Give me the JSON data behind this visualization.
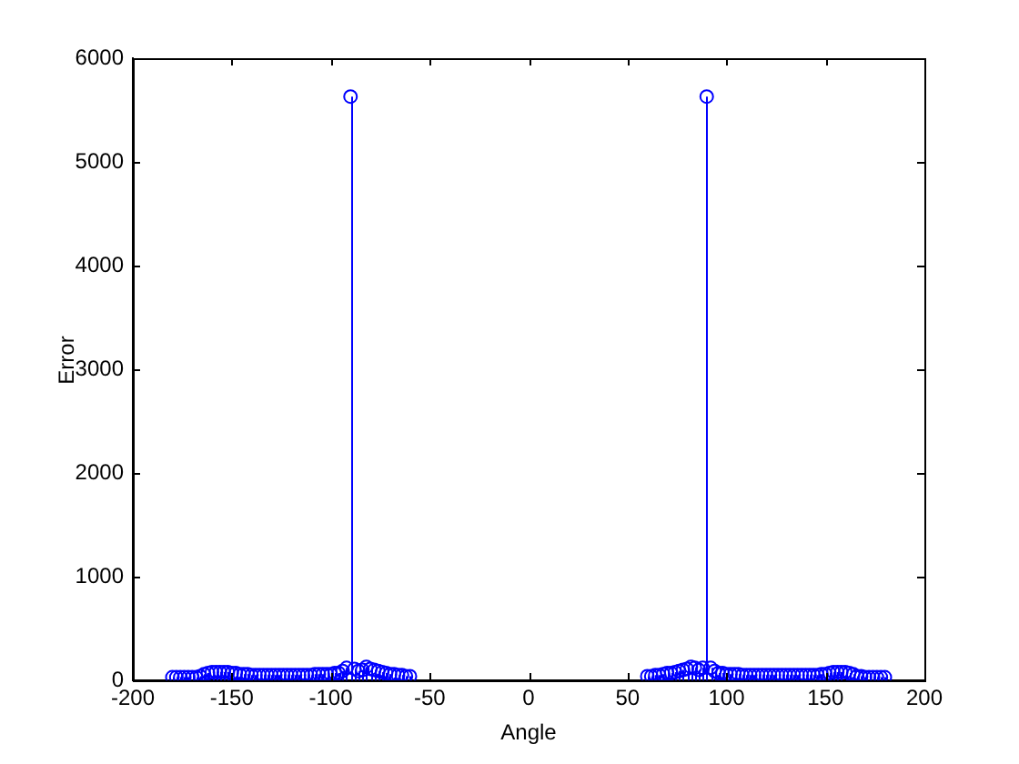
{
  "chart_data": {
    "type": "lollipop",
    "xlabel": "Angle",
    "ylabel": "Error",
    "x": [
      -180,
      -178,
      -176,
      -174,
      -172,
      -170,
      -168,
      -166,
      -164,
      -162,
      -160,
      -158,
      -156,
      -154,
      -152,
      -150,
      -148,
      -146,
      -144,
      -142,
      -140,
      -138,
      -136,
      -134,
      -132,
      -130,
      -128,
      -126,
      -124,
      -122,
      -120,
      -118,
      -116,
      -114,
      -112,
      -110,
      -108,
      -106,
      -104,
      -102,
      -100,
      -98,
      -96,
      -94,
      -92,
      -90,
      -88,
      -86,
      -84,
      -82,
      -80,
      -78,
      -76,
      -74,
      -72,
      -70,
      -68,
      -66,
      -64,
      -62,
      -60,
      60,
      62,
      64,
      66,
      68,
      70,
      72,
      74,
      76,
      78,
      80,
      82,
      84,
      86,
      88,
      90,
      92,
      94,
      96,
      98,
      100,
      102,
      104,
      106,
      108,
      110,
      112,
      114,
      116,
      118,
      120,
      122,
      124,
      126,
      128,
      130,
      132,
      134,
      136,
      138,
      140,
      142,
      144,
      146,
      148,
      150,
      152,
      154,
      156,
      158,
      160,
      162,
      164,
      166,
      168,
      170,
      172,
      174,
      176,
      178,
      180
    ],
    "values": [
      30,
      30,
      30,
      30,
      30,
      30,
      30,
      40,
      60,
      70,
      80,
      80,
      80,
      80,
      80,
      70,
      70,
      60,
      60,
      60,
      50,
      50,
      50,
      50,
      50,
      50,
      50,
      50,
      50,
      50,
      50,
      50,
      50,
      50,
      50,
      50,
      60,
      60,
      60,
      60,
      60,
      70,
      70,
      90,
      120,
      5630,
      110,
      90,
      100,
      130,
      110,
      100,
      90,
      80,
      70,
      60,
      60,
      50,
      50,
      40,
      40,
      40,
      40,
      50,
      50,
      60,
      70,
      70,
      80,
      90,
      100,
      110,
      130,
      120,
      100,
      120,
      5630,
      120,
      90,
      70,
      70,
      60,
      60,
      60,
      60,
      50,
      50,
      50,
      50,
      50,
      50,
      50,
      50,
      50,
      50,
      50,
      50,
      50,
      50,
      50,
      50,
      50,
      50,
      50,
      50,
      60,
      60,
      70,
      80,
      80,
      80,
      80,
      70,
      60,
      40,
      40,
      30,
      30,
      30,
      30,
      30,
      30
    ],
    "color": "#0000ff",
    "marker": "circle",
    "xlim": [
      -200,
      200
    ],
    "xticks": [
      -200,
      -150,
      -100,
      -50,
      0,
      50,
      100,
      150,
      200
    ],
    "ylim": [
      0,
      6000
    ],
    "yticks": [
      0,
      1000,
      2000,
      3000,
      4000,
      5000,
      6000
    ]
  }
}
